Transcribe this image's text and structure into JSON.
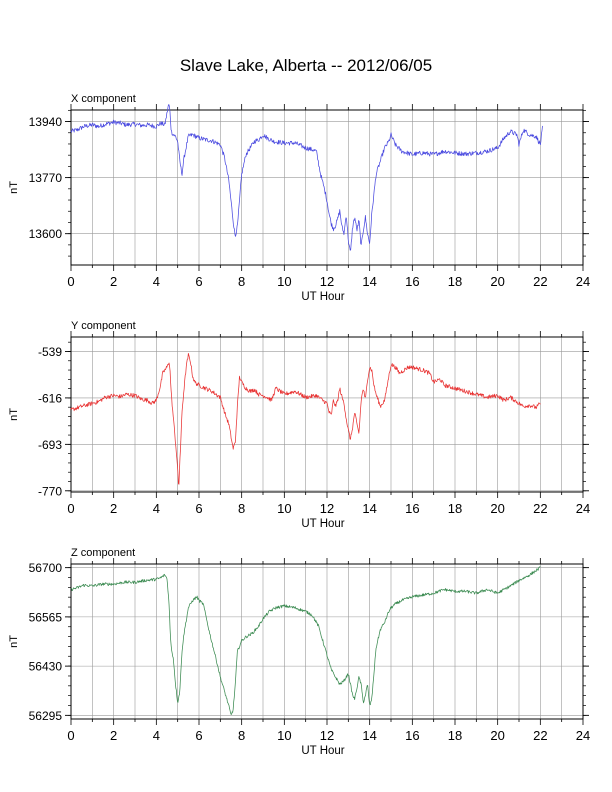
{
  "page": {
    "title": "Slave Lake, Alberta -- 2012/06/05"
  },
  "chart_data": [
    {
      "type": "line",
      "title": "X component",
      "xlabel": "UT Hour",
      "ylabel": "nT",
      "xlim": [
        0,
        24
      ],
      "ylim": [
        13505,
        13975
      ],
      "xticks": [
        0,
        2,
        4,
        6,
        8,
        10,
        12,
        14,
        16,
        18,
        20,
        22,
        24
      ],
      "yticks": [
        13600,
        13770,
        13940
      ],
      "color": "#4a4ae0",
      "noise": 7,
      "series": [
        {
          "x": [
            0,
            0.3,
            0.6,
            1,
            1.3,
            1.6,
            2,
            2.3,
            2.6,
            3,
            3.3,
            3.6,
            4,
            4.2,
            4.4,
            4.5,
            4.55,
            4.6,
            4.65,
            4.7,
            4.8,
            4.9,
            5,
            5.1,
            5.2,
            5.3,
            5.5,
            5.7,
            6,
            6.3,
            6.6,
            7,
            7.2,
            7.4,
            7.5,
            7.6,
            7.7,
            7.75,
            7.8,
            7.9,
            8,
            8.2,
            8.4,
            8.6,
            8.8,
            9,
            9.2,
            9.5,
            10,
            10.5,
            11,
            11.3,
            11.5,
            11.7,
            11.9,
            12,
            12.1,
            12.2,
            12.3,
            12.4,
            12.5,
            12.6,
            12.7,
            12.8,
            12.9,
            13,
            13.1,
            13.2,
            13.3,
            13.4,
            13.5,
            13.6,
            13.7,
            13.8,
            13.9,
            14,
            14.1,
            14.2,
            14.3,
            14.5,
            14.7,
            14.9,
            15,
            15.2,
            15.5,
            16,
            16.5,
            17,
            17.5,
            18,
            18.5,
            19,
            19.5,
            20,
            20.3,
            20.6,
            20.9,
            21,
            21.2,
            21.5,
            21.8,
            22,
            22.1
          ],
          "y": [
            13910,
            13915,
            13925,
            13930,
            13925,
            13932,
            13938,
            13935,
            13930,
            13932,
            13928,
            13930,
            13925,
            13935,
            13930,
            13965,
            13985,
            13992,
            13960,
            13910,
            13900,
            13895,
            13880,
            13820,
            13780,
            13830,
            13895,
            13900,
            13890,
            13885,
            13882,
            13870,
            13830,
            13760,
            13700,
            13640,
            13590,
            13610,
            13620,
            13700,
            13780,
            13840,
            13860,
            13880,
            13885,
            13900,
            13890,
            13880,
            13875,
            13875,
            13860,
            13855,
            13850,
            13780,
            13730,
            13700,
            13660,
            13630,
            13615,
            13625,
            13645,
            13670,
            13620,
            13600,
            13660,
            13580,
            13540,
            13620,
            13650,
            13610,
            13640,
            13560,
            13610,
            13650,
            13600,
            13570,
            13660,
            13720,
            13780,
            13820,
            13860,
            13880,
            13900,
            13870,
            13850,
            13840,
            13845,
            13840,
            13850,
            13845,
            13842,
            13845,
            13850,
            13860,
            13890,
            13910,
            13900,
            13870,
            13915,
            13900,
            13895,
            13870,
            13920
          ]
        }
      ]
    },
    {
      "type": "line",
      "title": "Y component",
      "xlabel": "UT Hour",
      "ylabel": "nT",
      "xlim": [
        0,
        24
      ],
      "ylim": [
        -772,
        -515
      ],
      "xticks": [
        0,
        2,
        4,
        6,
        8,
        10,
        12,
        14,
        16,
        18,
        20,
        22,
        24
      ],
      "yticks": [
        -539,
        -616,
        -693,
        -770
      ],
      "color": "#e83030",
      "noise": 3.5,
      "series": [
        {
          "x": [
            0,
            0.5,
            1,
            1.3,
            1.6,
            2,
            2.3,
            2.6,
            3,
            3.3,
            3.6,
            3.8,
            4,
            4.2,
            4.3,
            4.5,
            4.6,
            4.65,
            4.7,
            4.8,
            4.9,
            4.95,
            5,
            5.05,
            5.1,
            5.15,
            5.2,
            5.3,
            5.4,
            5.5,
            5.6,
            5.7,
            5.8,
            6,
            6.3,
            6.6,
            7,
            7.2,
            7.4,
            7.5,
            7.6,
            7.7,
            7.8,
            7.9,
            8,
            8.2,
            8.4,
            8.6,
            8.8,
            9,
            9.2,
            9.4,
            9.6,
            10,
            10.5,
            11,
            11.5,
            11.8,
            12,
            12.1,
            12.2,
            12.3,
            12.4,
            12.5,
            12.6,
            12.7,
            12.8,
            12.9,
            13,
            13.1,
            13.2,
            13.3,
            13.4,
            13.5,
            13.6,
            13.7,
            13.8,
            13.9,
            14,
            14.1,
            14.2,
            14.3,
            14.5,
            14.7,
            14.9,
            15,
            15.2,
            15.4,
            15.6,
            15.8,
            16,
            16.5,
            16.8,
            17,
            17.3,
            17.5,
            18,
            18.5,
            19,
            19.5,
            20,
            20.3,
            20.6,
            20.8,
            21,
            21.2,
            21.5,
            21.8,
            22
          ],
          "y": [
            -636,
            -630,
            -625,
            -622,
            -615,
            -612,
            -614,
            -610,
            -612,
            -618,
            -620,
            -625,
            -620,
            -595,
            -575,
            -565,
            -555,
            -575,
            -610,
            -650,
            -690,
            -710,
            -735,
            -768,
            -720,
            -690,
            -640,
            -600,
            -565,
            -545,
            -555,
            -580,
            -590,
            -595,
            -600,
            -605,
            -615,
            -640,
            -660,
            -680,
            -700,
            -690,
            -630,
            -580,
            -590,
            -600,
            -605,
            -602,
            -610,
            -612,
            -615,
            -620,
            -600,
            -610,
            -605,
            -615,
            -612,
            -620,
            -625,
            -640,
            -645,
            -620,
            -630,
            -620,
            -600,
            -615,
            -625,
            -650,
            -670,
            -685,
            -665,
            -640,
            -660,
            -675,
            -620,
            -600,
            -620,
            -585,
            -565,
            -570,
            -595,
            -610,
            -630,
            -620,
            -580,
            -560,
            -565,
            -575,
            -570,
            -565,
            -565,
            -570,
            -575,
            -590,
            -585,
            -595,
            -600,
            -605,
            -610,
            -615,
            -612,
            -620,
            -615,
            -620,
            -625,
            -630,
            -628,
            -632,
            -625
          ]
        }
      ]
    },
    {
      "type": "line",
      "title": "Z component",
      "xlabel": "UT Hour",
      "ylabel": "nT",
      "xlim": [
        0,
        24
      ],
      "ylim": [
        56285,
        56710
      ],
      "xticks": [
        0,
        2,
        4,
        6,
        8,
        10,
        12,
        14,
        16,
        18,
        20,
        22,
        24
      ],
      "yticks": [
        56295,
        56430,
        56565,
        56700
      ],
      "color": "#3a8a50",
      "noise": 4,
      "series": [
        {
          "x": [
            0,
            0.3,
            0.6,
            1,
            1.5,
            2,
            2.5,
            3,
            3.5,
            4,
            4.2,
            4.4,
            4.5,
            4.6,
            4.65,
            4.7,
            4.8,
            4.9,
            5,
            5.1,
            5.2,
            5.3,
            5.5,
            5.7,
            5.9,
            6,
            6.2,
            6.5,
            6.8,
            7,
            7.2,
            7.4,
            7.5,
            7.6,
            7.7,
            7.8,
            8,
            8.2,
            8.5,
            8.8,
            9,
            9.3,
            9.6,
            10,
            10.5,
            11,
            11.3,
            11.6,
            11.8,
            12,
            12.2,
            12.4,
            12.6,
            12.8,
            13,
            13.1,
            13.2,
            13.3,
            13.4,
            13.5,
            13.6,
            13.7,
            13.8,
            13.9,
            14,
            14.1,
            14.2,
            14.3,
            14.5,
            14.7,
            14.9,
            15,
            15.2,
            15.5,
            16,
            16.5,
            17,
            17.5,
            18,
            18.5,
            19,
            19.5,
            20,
            20.3,
            20.6,
            21,
            21.5,
            22
          ],
          "y": [
            56640,
            56645,
            56652,
            56650,
            56655,
            56655,
            56660,
            56660,
            56665,
            56668,
            56672,
            56680,
            56670,
            56600,
            56520,
            56480,
            56450,
            56380,
            56330,
            56360,
            56470,
            56520,
            56590,
            56610,
            56620,
            56610,
            56600,
            56520,
            56450,
            56400,
            56360,
            56320,
            56295,
            56310,
            56380,
            56470,
            56500,
            56510,
            56520,
            56540,
            56560,
            56580,
            56590,
            56595,
            56590,
            56580,
            56570,
            56540,
            56500,
            56460,
            56420,
            56400,
            56380,
            56390,
            56410,
            56380,
            56350,
            56340,
            56370,
            56400,
            56380,
            56330,
            56350,
            56380,
            56320,
            56340,
            56410,
            56480,
            56530,
            56550,
            56580,
            56590,
            56600,
            56610,
            56620,
            56625,
            56630,
            56640,
            56635,
            56635,
            56630,
            56640,
            56630,
            56640,
            56650,
            56665,
            56680,
            56700
          ]
        }
      ]
    }
  ]
}
